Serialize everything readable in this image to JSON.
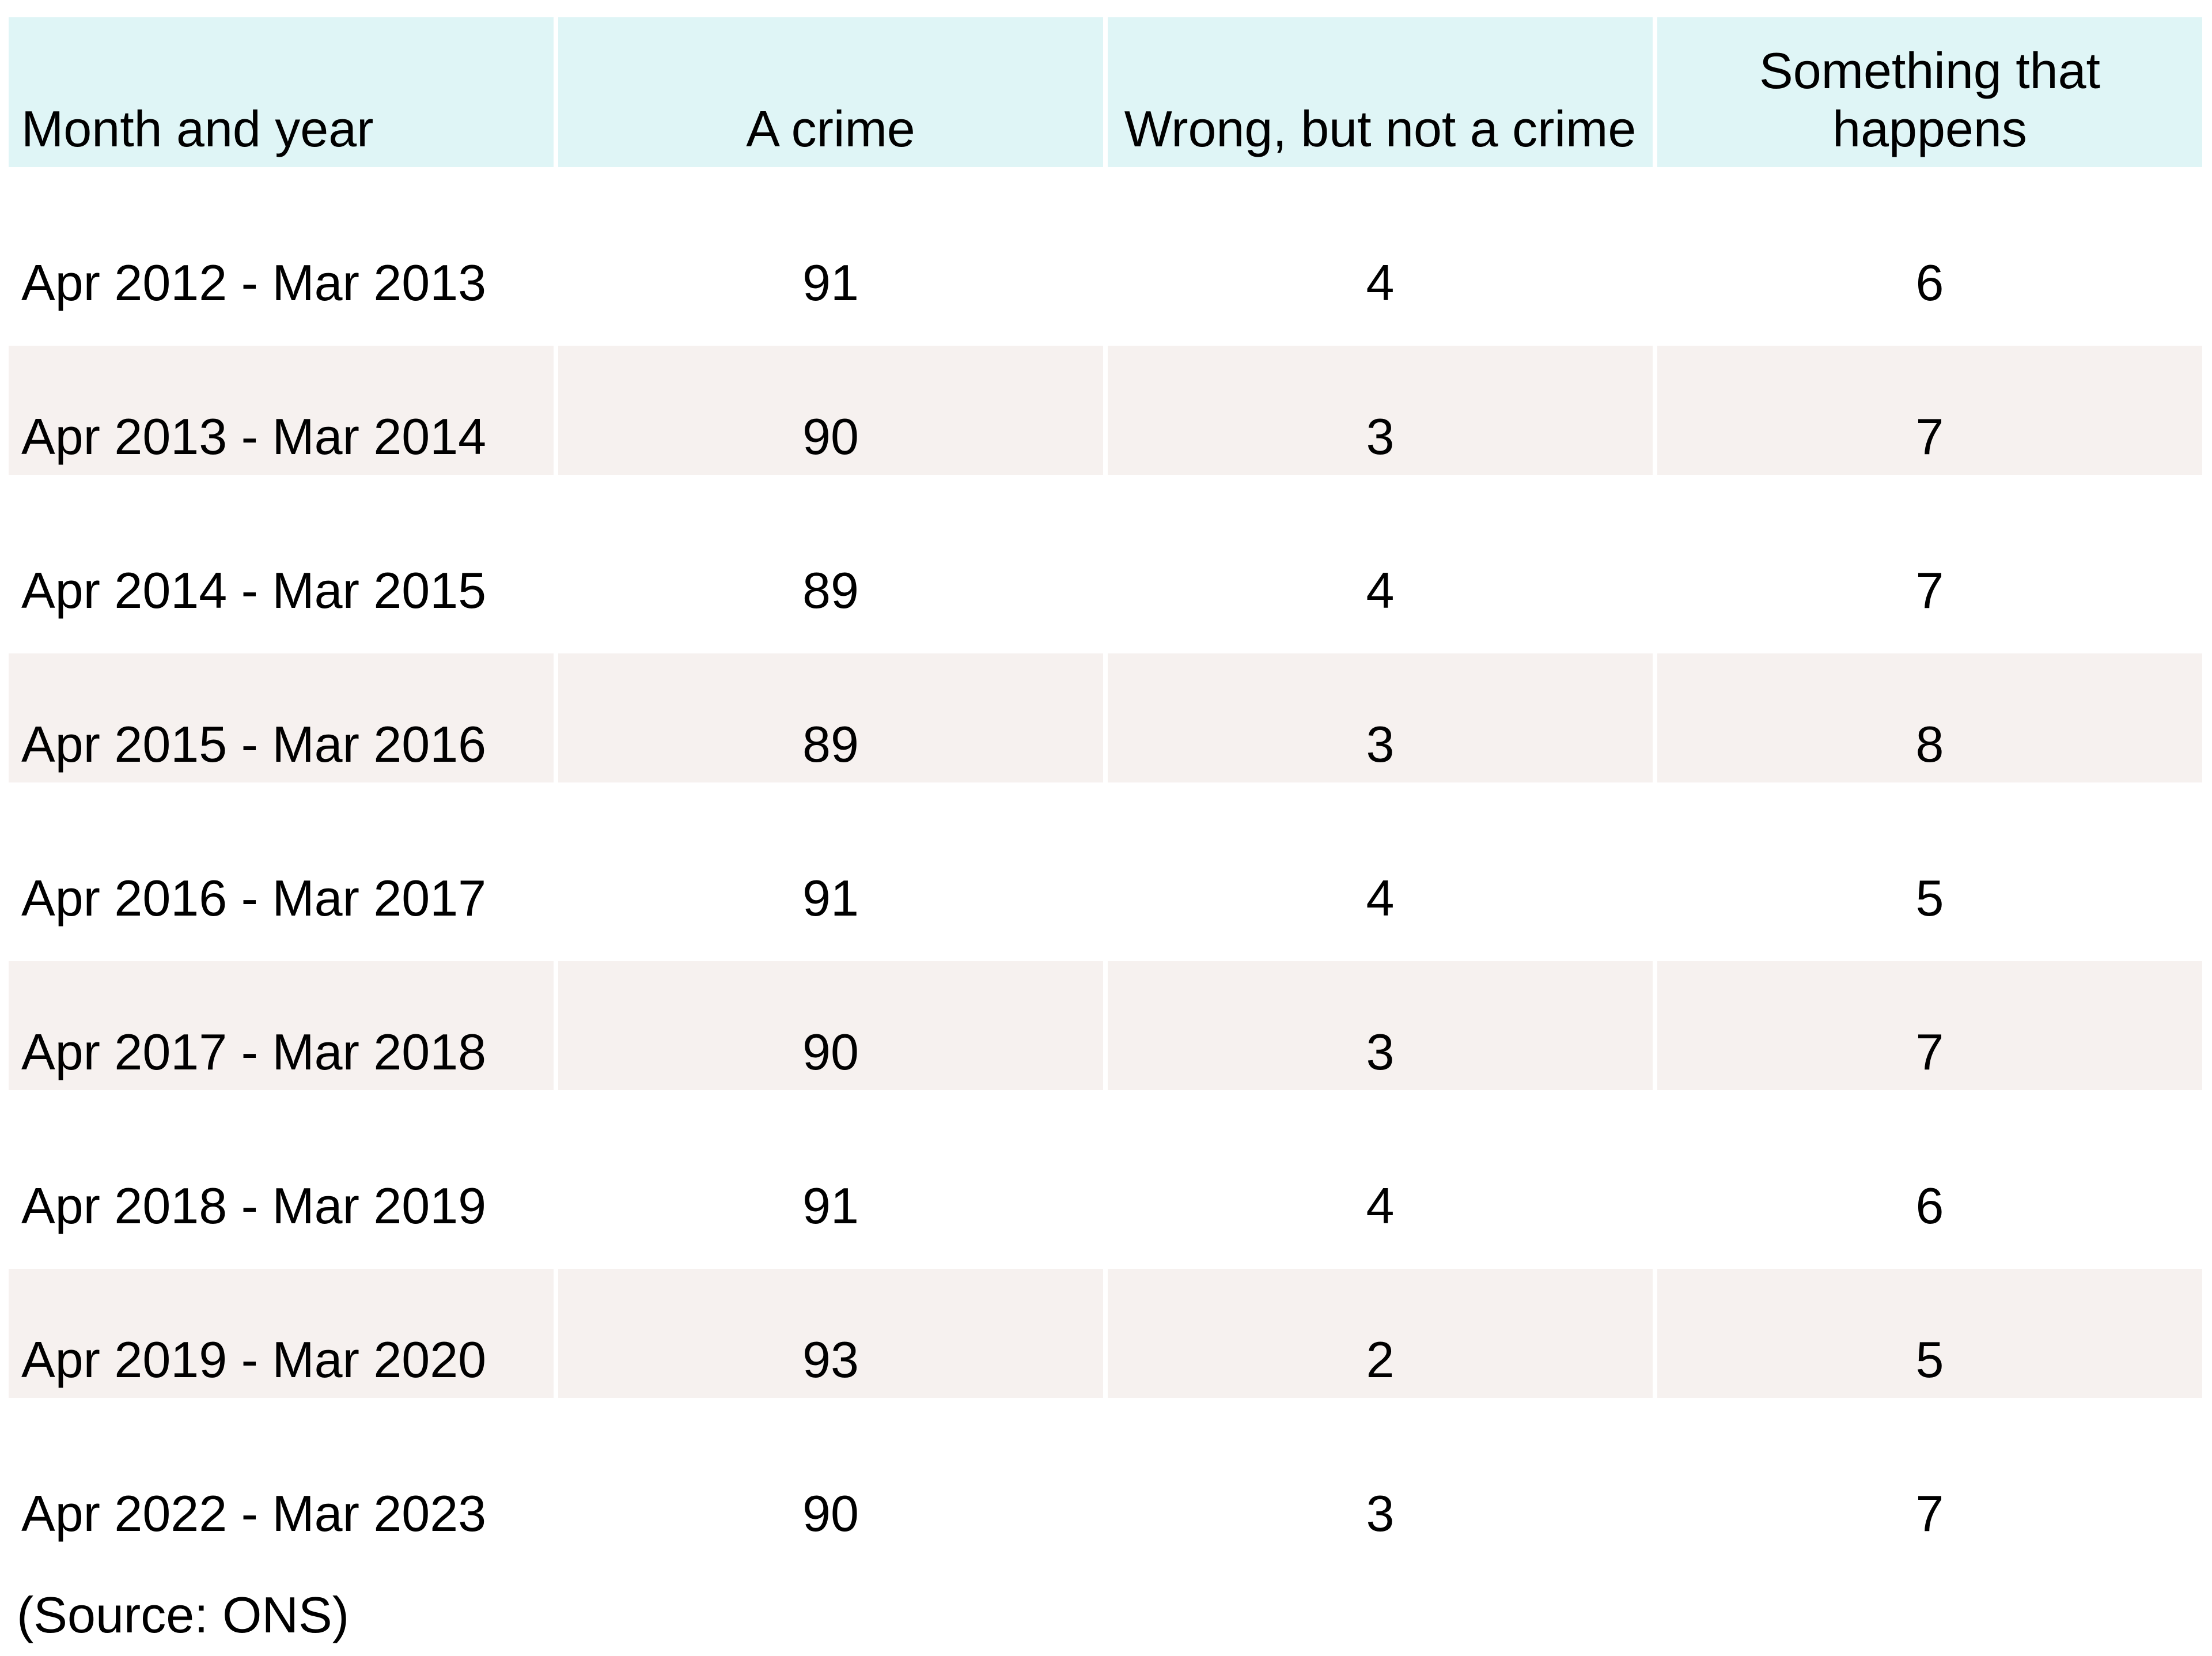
{
  "chart_data": {
    "type": "table",
    "title": "",
    "columns": [
      "Month and year",
      "A crime",
      "Wrong, but not a crime",
      "Something that happens"
    ],
    "rows": [
      [
        "Apr 2012 - Mar 2013",
        91,
        4,
        6
      ],
      [
        "Apr 2013 - Mar 2014",
        90,
        3,
        7
      ],
      [
        "Apr 2014 - Mar 2015",
        89,
        4,
        7
      ],
      [
        "Apr 2015 - Mar 2016",
        89,
        3,
        8
      ],
      [
        "Apr 2016 - Mar 2017",
        91,
        4,
        5
      ],
      [
        "Apr 2017 - Mar 2018",
        90,
        3,
        7
      ],
      [
        "Apr 2018 - Mar 2019",
        91,
        4,
        6
      ],
      [
        "Apr 2019 - Mar 2020",
        93,
        2,
        5
      ],
      [
        "Apr 2022 - Mar 2023",
        90,
        3,
        7
      ]
    ],
    "source": "(Source: ONS)",
    "layout_hints": {
      "striped_row_indices": [
        1,
        3,
        5,
        7
      ],
      "value_alignment": "center",
      "first_column_alignment": "left"
    }
  },
  "source_note": "(Source: ONS)",
  "colors": {
    "header_bg": "#dff5f6",
    "stripe_bg": "#f6f1ef",
    "text": "#000000",
    "page_bg": "#ffffff"
  }
}
